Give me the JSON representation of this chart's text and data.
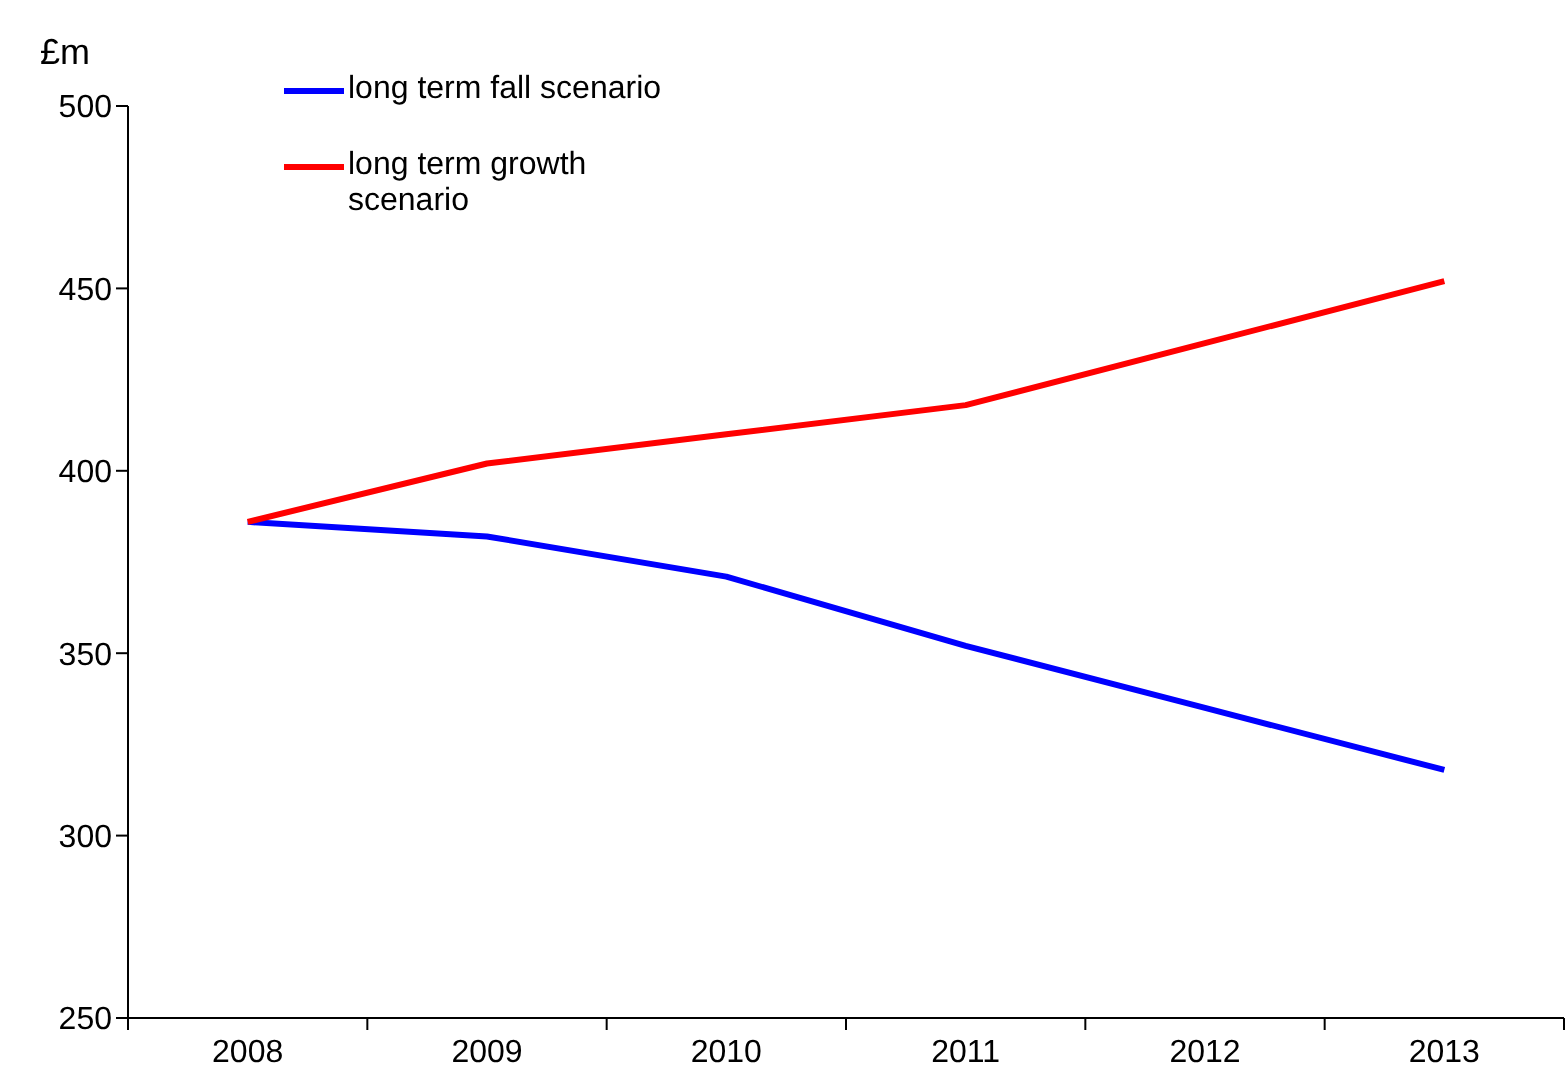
{
  "chart_data": {
    "type": "line",
    "ylabel": "£m",
    "categories": [
      "2008",
      "2009",
      "2010",
      "2011",
      "2012",
      "2013"
    ],
    "series": [
      {
        "name": "long term fall scenario",
        "color": "#0000ff",
        "values": [
          386,
          382,
          371,
          352,
          335,
          318
        ]
      },
      {
        "name": "long term growth scenario",
        "color": "#ff0000",
        "values": [
          386,
          402,
          410,
          418,
          435,
          452
        ]
      }
    ],
    "ylim": [
      250,
      500
    ],
    "yticks": [
      250,
      300,
      350,
      400,
      450,
      500
    ],
    "grid": false,
    "legend": "top left",
    "marker": "none",
    "line_style": "solid"
  }
}
